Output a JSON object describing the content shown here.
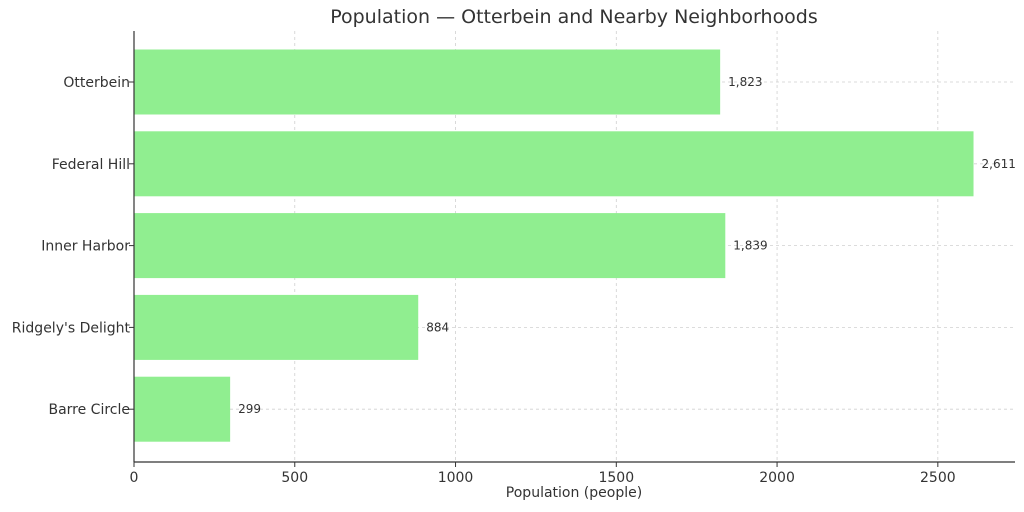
{
  "chart_data": {
    "type": "bar",
    "orientation": "horizontal",
    "title": "Population — Otterbein and Nearby Neighborhoods",
    "xlabel": "Population (people)",
    "ylabel": "",
    "categories": [
      "Otterbein",
      "Federal Hill",
      "Inner Harbor",
      "Ridgely's Delight",
      "Barre Circle"
    ],
    "values": [
      1823,
      2611,
      1839,
      884,
      299
    ],
    "value_labels": [
      "1,823",
      "2,611",
      "1,839",
      "884",
      "299"
    ],
    "xlim": [
      0,
      2740
    ],
    "xticks": [
      0,
      500,
      1000,
      1500,
      2000,
      2500
    ],
    "xtick_labels": [
      "0",
      "500",
      "1000",
      "1500",
      "2000",
      "2500"
    ],
    "grid": true,
    "bar_color": "#90ee90"
  }
}
